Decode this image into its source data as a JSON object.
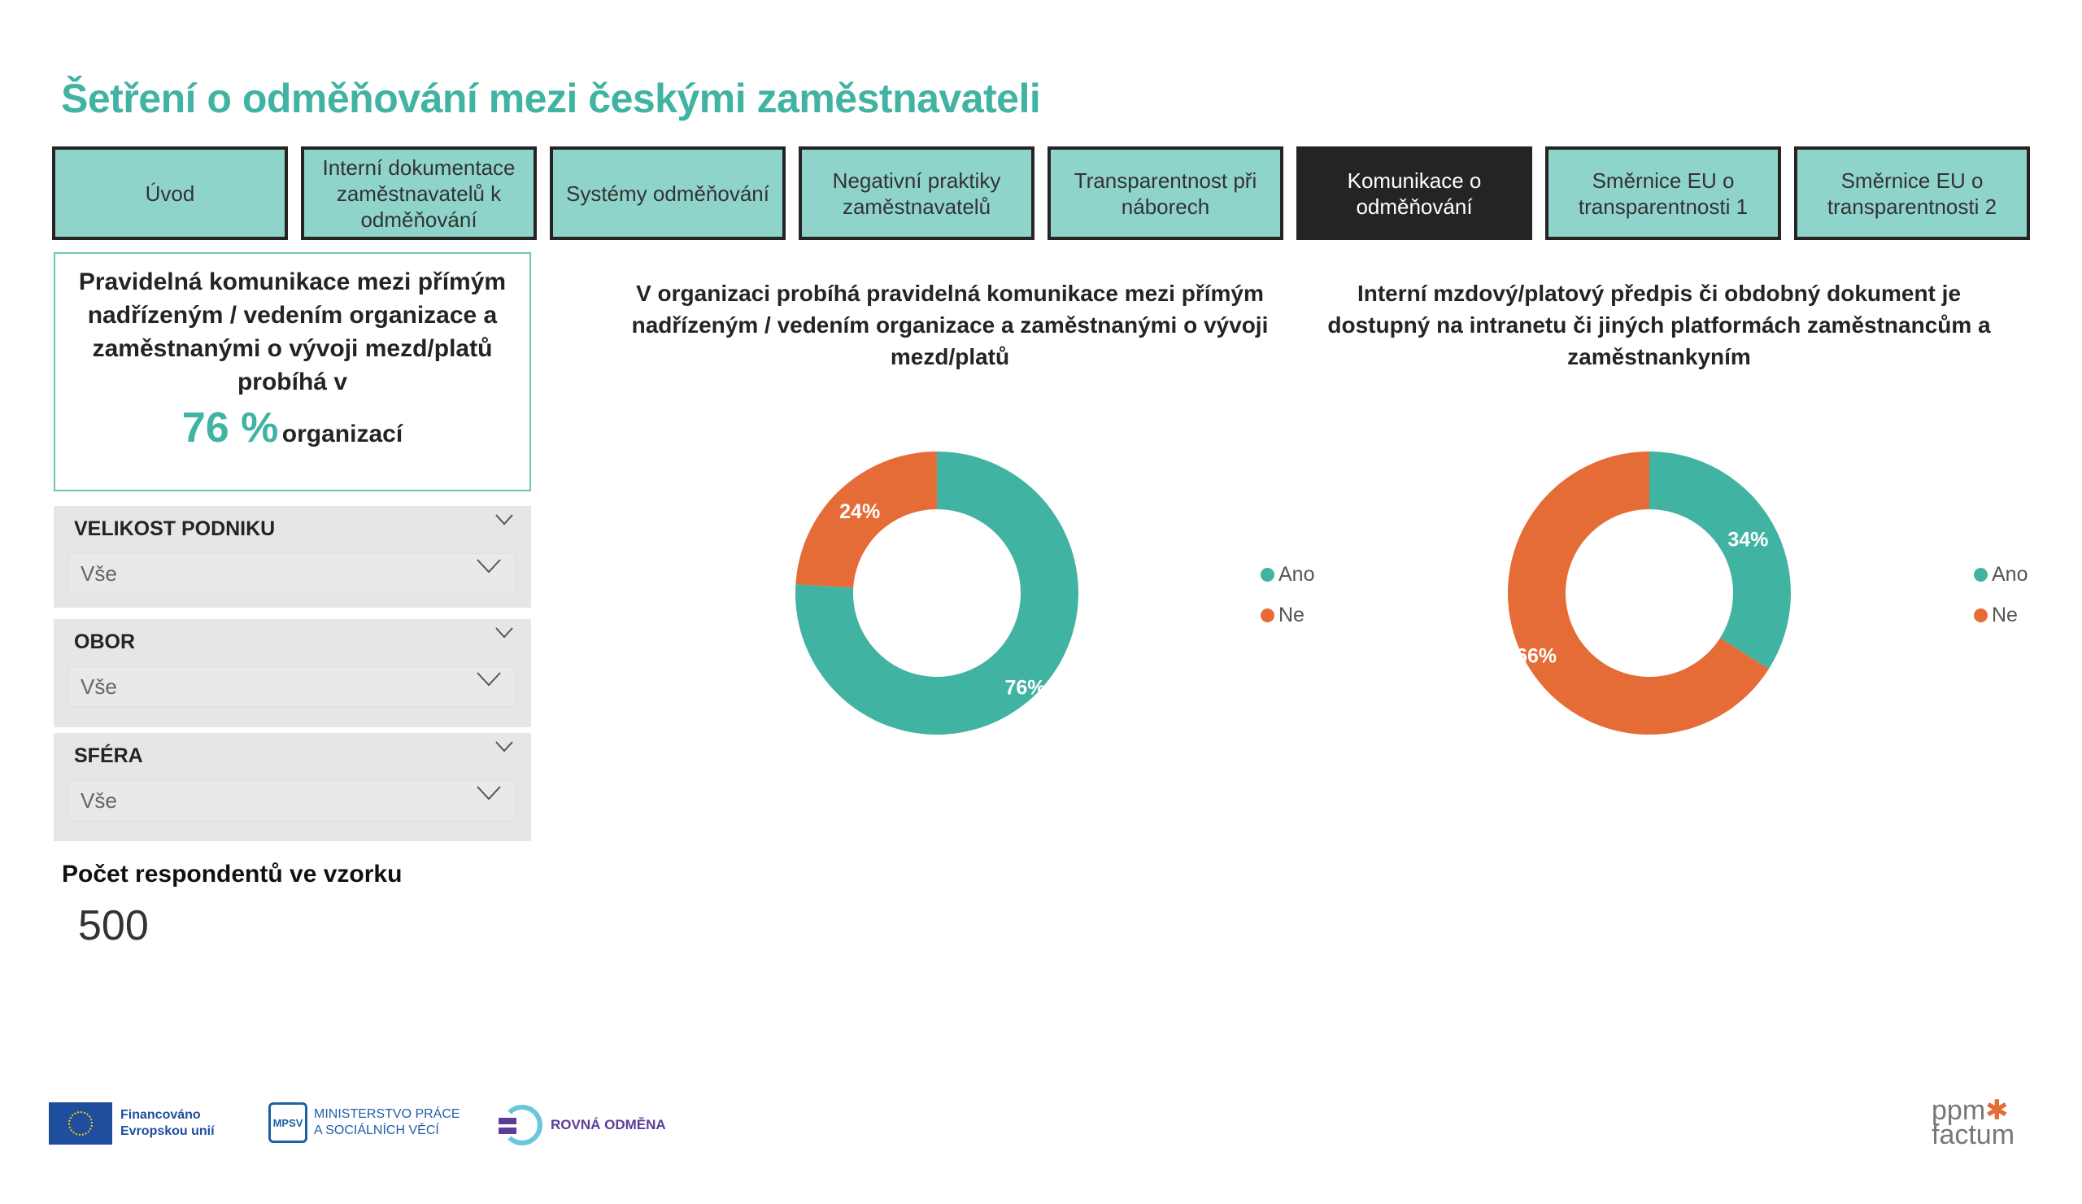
{
  "title": "Šetření o odměňování mezi českými zaměstnavateli",
  "tabs": [
    {
      "label": "Úvod",
      "active": false
    },
    {
      "label": "Interní dokumentace zaměstnavatelů k odměňování",
      "active": false
    },
    {
      "label": "Systémy odměňování",
      "active": false
    },
    {
      "label": "Negativní praktiky zaměstnavatelů",
      "active": false
    },
    {
      "label": "Transparentnost při náborech",
      "active": false
    },
    {
      "label": "Komunikace o odměňování",
      "active": true
    },
    {
      "label": "Směrnice EU o transparentnosti 1",
      "active": false
    },
    {
      "label": "Směrnice EU o transparentnosti 2",
      "active": false
    }
  ],
  "kpi": {
    "text": "Pravidelná komunikace mezi přímým nadřízeným / vedením organizace a zaměstnanými o vývoji mezd/platů probíhá v",
    "value": "76 %",
    "unit": "organizací"
  },
  "filters": [
    {
      "label": "VELIKOST PODNIKU",
      "value": "Vše"
    },
    {
      "label": "OBOR",
      "value": "Vše"
    },
    {
      "label": "SFÉRA",
      "value": "Vše"
    }
  ],
  "respondents": {
    "label": "Počet respondentů ve vzorku",
    "value": "500"
  },
  "colors": {
    "ano": "#41b3a3",
    "ne": "#e66c37",
    "accent": "#41b3a3"
  },
  "chart_data": [
    {
      "type": "pie",
      "title": "V organizaci probíhá pravidelná komunikace mezi přímým nadřízeným / vedením organizace a zaměstnanými o vývoji mezd/platů",
      "categories": [
        "Ano",
        "Ne"
      ],
      "values": [
        76,
        24
      ],
      "labels": [
        "76%",
        "24%"
      ],
      "legend": "right"
    },
    {
      "type": "pie",
      "title": "Interní mzdový/platový předpis či obdobný dokument je dostupný na intranetu či jiných platformách zaměstnancům a zaměstnankyním",
      "categories": [
        "Ano",
        "Ne"
      ],
      "values": [
        34,
        66
      ],
      "labels": [
        "34%",
        "66%"
      ],
      "legend": "right"
    }
  ],
  "footer": {
    "eu": [
      "Financováno",
      "Evropskou unií"
    ],
    "mpsv": [
      "MINISTERSTVO PRÁCE",
      "A SOCIÁLNÍCH VĚCÍ"
    ],
    "mpsv_mark": "MPSV",
    "rovna": "ROVNÁ ODMĚNA",
    "ppm": [
      "ppm",
      "factum"
    ]
  }
}
